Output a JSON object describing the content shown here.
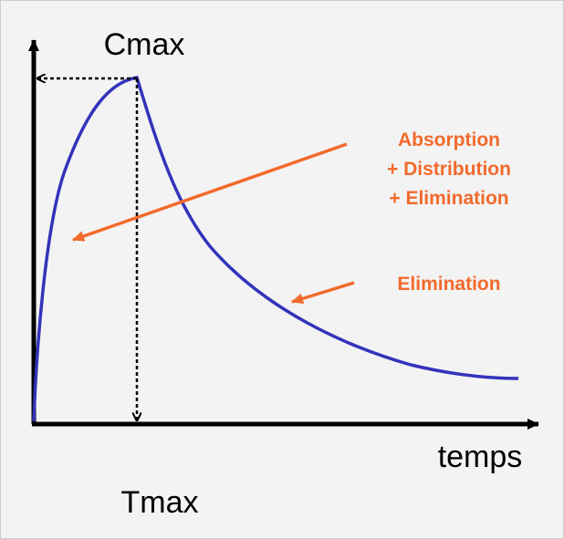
{
  "labels": {
    "cmax": "Cmax",
    "tmax": "Tmax",
    "time_axis": "temps",
    "absorption_phase": [
      "Absorption",
      "+ Distribution",
      "+ Elimination"
    ],
    "elimination_phase": "Elimination"
  }
}
